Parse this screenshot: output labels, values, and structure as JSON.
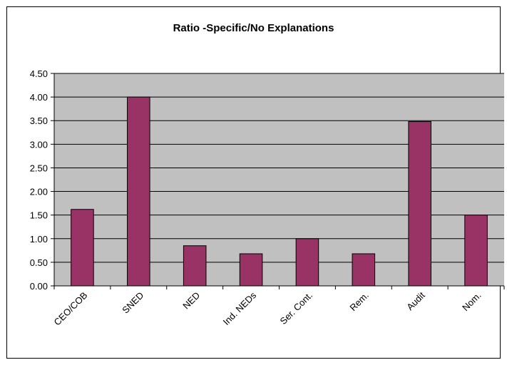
{
  "chart_data": {
    "type": "bar",
    "title": "Ratio -Specific/No Explanations",
    "categories": [
      "CEO/COB",
      "SNED",
      "NED",
      "Ind. NEDs",
      "Ser. Cont.",
      "Rem.",
      "Audit",
      "Nom."
    ],
    "values": [
      1.62,
      4.0,
      0.85,
      0.68,
      1.0,
      0.68,
      3.48,
      1.5
    ],
    "ylim": [
      0,
      4.5
    ],
    "yticks": [
      "0.00",
      "0.50",
      "1.00",
      "1.50",
      "2.00",
      "2.50",
      "3.00",
      "3.50",
      "4.00",
      "4.50"
    ],
    "grid": true,
    "legend": "none",
    "bar_color": "#993366",
    "plot_background": "#c0c0c0"
  }
}
